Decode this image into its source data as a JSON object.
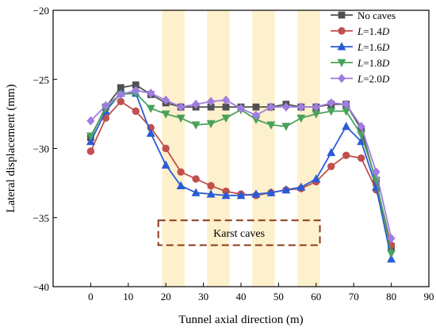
{
  "chart_data": {
    "type": "line",
    "xlabel": "Tunnel axial direction (m)",
    "ylabel": "Lateral displacement (mm)",
    "xlim": [
      -10,
      90
    ],
    "ylim": [
      -40,
      -20
    ],
    "xticks": [
      0,
      10,
      20,
      30,
      40,
      50,
      60,
      70,
      80,
      90
    ],
    "yticks": [
      -20,
      -25,
      -30,
      -35,
      -40
    ],
    "grid": false,
    "legend_position": "top-right",
    "x": [
      0,
      4,
      8,
      12,
      16,
      20,
      24,
      28,
      32,
      36,
      40,
      44,
      48,
      52,
      56,
      60,
      64,
      68,
      72,
      76,
      80
    ],
    "series": [
      {
        "name_pre": "No caves",
        "name_it": "",
        "name_post": "",
        "color": "#505050",
        "marker": "square",
        "values": [
          -29.2,
          -27.0,
          -25.6,
          -25.4,
          -26.1,
          -26.7,
          -27.0,
          -27.0,
          -27.0,
          -27.0,
          -27.0,
          -27.0,
          -27.0,
          -26.8,
          -27.0,
          -27.0,
          -26.8,
          -26.8,
          -28.6,
          -32.5,
          -37.1
        ]
      },
      {
        "name_pre": "",
        "name_it": "L",
        "name_post": "=1.4D",
        "color": "#c0504d",
        "marker": "circle",
        "values": [
          -30.2,
          -27.8,
          -26.6,
          -27.3,
          -28.5,
          -30.0,
          -31.7,
          -32.2,
          -32.7,
          -33.1,
          -33.3,
          -33.4,
          -33.2,
          -33.0,
          -32.9,
          -32.4,
          -31.3,
          -30.5,
          -30.7,
          -33.0,
          -37.0
        ]
      },
      {
        "name_pre": "",
        "name_it": "L",
        "name_post": "=1.6D",
        "color": "#2a5bd7",
        "marker": "triangle-up",
        "values": [
          -29.5,
          -27.3,
          -26.0,
          -26.0,
          -28.9,
          -31.2,
          -32.7,
          -33.2,
          -33.3,
          -33.4,
          -33.4,
          -33.3,
          -33.2,
          -33.0,
          -32.8,
          -32.2,
          -30.3,
          -28.4,
          -29.5,
          -32.8,
          -38.0
        ]
      },
      {
        "name_pre": "",
        "name_it": "L",
        "name_post": "=1.8D",
        "color": "#4aa25a",
        "marker": "triangle-down",
        "values": [
          -29.1,
          -27.1,
          -26.1,
          -26.0,
          -27.1,
          -27.5,
          -27.8,
          -28.3,
          -28.2,
          -27.8,
          -27.2,
          -27.9,
          -28.3,
          -28.4,
          -27.8,
          -27.5,
          -27.3,
          -27.3,
          -29.0,
          -32.3,
          -37.6
        ]
      },
      {
        "name_pre": "",
        "name_it": "L",
        "name_post": "=2.0D",
        "color": "#a07de0",
        "marker": "diamond",
        "values": [
          -28.0,
          -26.9,
          -26.1,
          -25.8,
          -26.0,
          -26.5,
          -27.0,
          -26.8,
          -26.6,
          -26.5,
          -27.1,
          -27.6,
          -27.0,
          -27.0,
          -27.0,
          -27.0,
          -26.7,
          -26.8,
          -28.4,
          -31.7,
          -36.5
        ]
      }
    ],
    "shaded_regions_x": [
      [
        19,
        25
      ],
      [
        31,
        37
      ],
      [
        43,
        49
      ],
      [
        55,
        61
      ]
    ],
    "annotation": {
      "text": "Karst caves",
      "x_range": [
        18,
        61
      ],
      "y_range": [
        -35.2,
        -37.0
      ]
    }
  }
}
